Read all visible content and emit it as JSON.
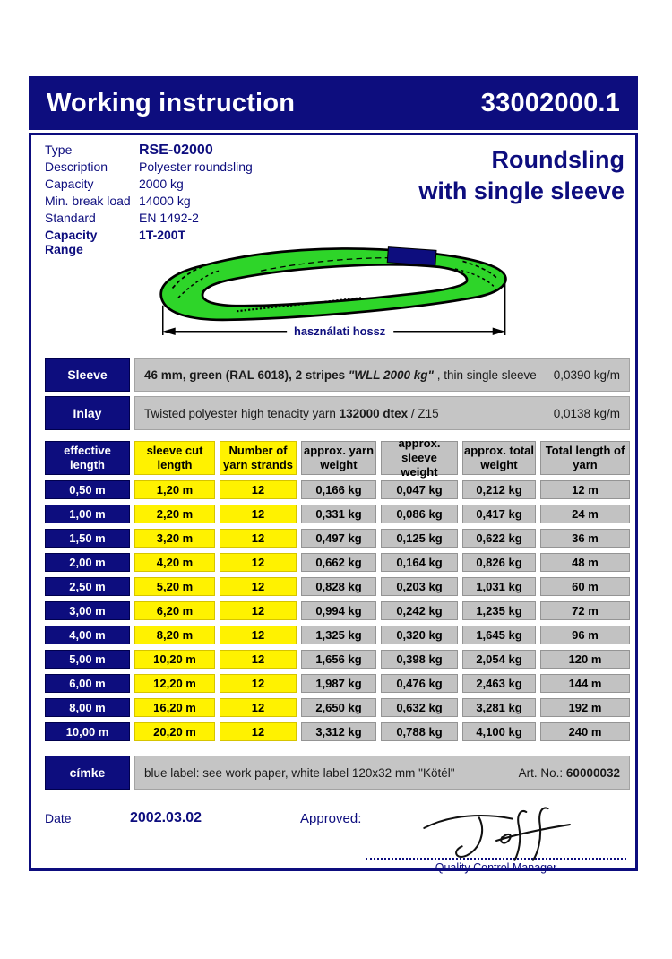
{
  "colors": {
    "navy": "#0d0d7e",
    "yellow": "#fff200",
    "gray": "#c5c5c5",
    "green": "#2ed529"
  },
  "header": {
    "title": "Working instruction",
    "doc_number": "33002000.1"
  },
  "info": {
    "rows": [
      {
        "label": "Type",
        "value": "RSE-02000",
        "emphasis": "value-bold-large"
      },
      {
        "label": "Description",
        "value": "Polyester roundsling",
        "emphasis": ""
      },
      {
        "label": "Capacity",
        "value": "2000 kg",
        "emphasis": ""
      },
      {
        "label": "Min. break load",
        "value": "14000 kg",
        "emphasis": ""
      },
      {
        "label": "Standard",
        "value": "EN 1492-2",
        "emphasis": ""
      },
      {
        "label": "Capacity Range",
        "value": "1T-200T",
        "emphasis": "row-bold"
      }
    ]
  },
  "product_heading": {
    "line1": "Roundsling",
    "line2": "with single sleeve"
  },
  "diagram": {
    "dimension_label": "használati hossz"
  },
  "bars": {
    "sleeve": {
      "label": "Sleeve",
      "segments": [
        {
          "text": "46 mm, green (RAL 6018), 2 stripes ",
          "style": "bold"
        },
        {
          "text": "\"WLL 2000 kg\"",
          "style": "bold-italic"
        },
        {
          "text": " , thin single sleeve",
          "style": ""
        }
      ],
      "value": "0,0390 kg/m"
    },
    "inlay": {
      "label": "Inlay",
      "segments": [
        {
          "text": "Twisted polyester high tenacity yarn ",
          "style": ""
        },
        {
          "text": "132000 dtex",
          "style": "bold"
        },
        {
          "text": " / Z15",
          "style": ""
        }
      ],
      "value": "0,0138 kg/m"
    },
    "cimke": {
      "label": "címke",
      "segments": [
        {
          "text": "blue label: see work paper, white label 120x32 mm \"Kötél\"",
          "style": ""
        }
      ],
      "right_segments": [
        {
          "text": "Art. No.: ",
          "style": ""
        },
        {
          "text": "60000032",
          "style": "bold"
        }
      ]
    }
  },
  "table": {
    "headers": [
      "effective length",
      "sleeve cut length",
      "Number of yarn strands",
      "approx. yarn weight",
      "approx. sleeve weight",
      "approx. total weight",
      "Total length of yarn"
    ],
    "col_styles": [
      "navy",
      "yellow",
      "yellow",
      "gray",
      "gray",
      "gray",
      "gray"
    ],
    "rows": [
      [
        "0,50 m",
        "1,20 m",
        "12",
        "0,166 kg",
        "0,047 kg",
        "0,212 kg",
        "12 m"
      ],
      [
        "1,00 m",
        "2,20 m",
        "12",
        "0,331 kg",
        "0,086 kg",
        "0,417 kg",
        "24 m"
      ],
      [
        "1,50 m",
        "3,20 m",
        "12",
        "0,497 kg",
        "0,125 kg",
        "0,622 kg",
        "36 m"
      ],
      [
        "2,00 m",
        "4,20 m",
        "12",
        "0,662 kg",
        "0,164 kg",
        "0,826 kg",
        "48 m"
      ],
      [
        "2,50 m",
        "5,20 m",
        "12",
        "0,828 kg",
        "0,203 kg",
        "1,031 kg",
        "60 m"
      ],
      [
        "3,00 m",
        "6,20 m",
        "12",
        "0,994 kg",
        "0,242 kg",
        "1,235 kg",
        "72 m"
      ],
      [
        "4,00 m",
        "8,20 m",
        "12",
        "1,325 kg",
        "0,320 kg",
        "1,645 kg",
        "96 m"
      ],
      [
        "5,00 m",
        "10,20 m",
        "12",
        "1,656 kg",
        "0,398 kg",
        "2,054 kg",
        "120 m"
      ],
      [
        "6,00 m",
        "12,20 m",
        "12",
        "1,987 kg",
        "0,476 kg",
        "2,463 kg",
        "144 m"
      ],
      [
        "8,00 m",
        "16,20 m",
        "12",
        "2,650 kg",
        "0,632 kg",
        "3,281 kg",
        "192 m"
      ],
      [
        "10,00 m",
        "20,20 m",
        "12",
        "3,312 kg",
        "0,788 kg",
        "4,100 kg",
        "240 m"
      ]
    ]
  },
  "footer": {
    "date_label": "Date",
    "date_value": "2002.03.02",
    "approved_label": "Approved:",
    "signature_name": "Jeff",
    "signature_title": "Quality Control Manager"
  }
}
